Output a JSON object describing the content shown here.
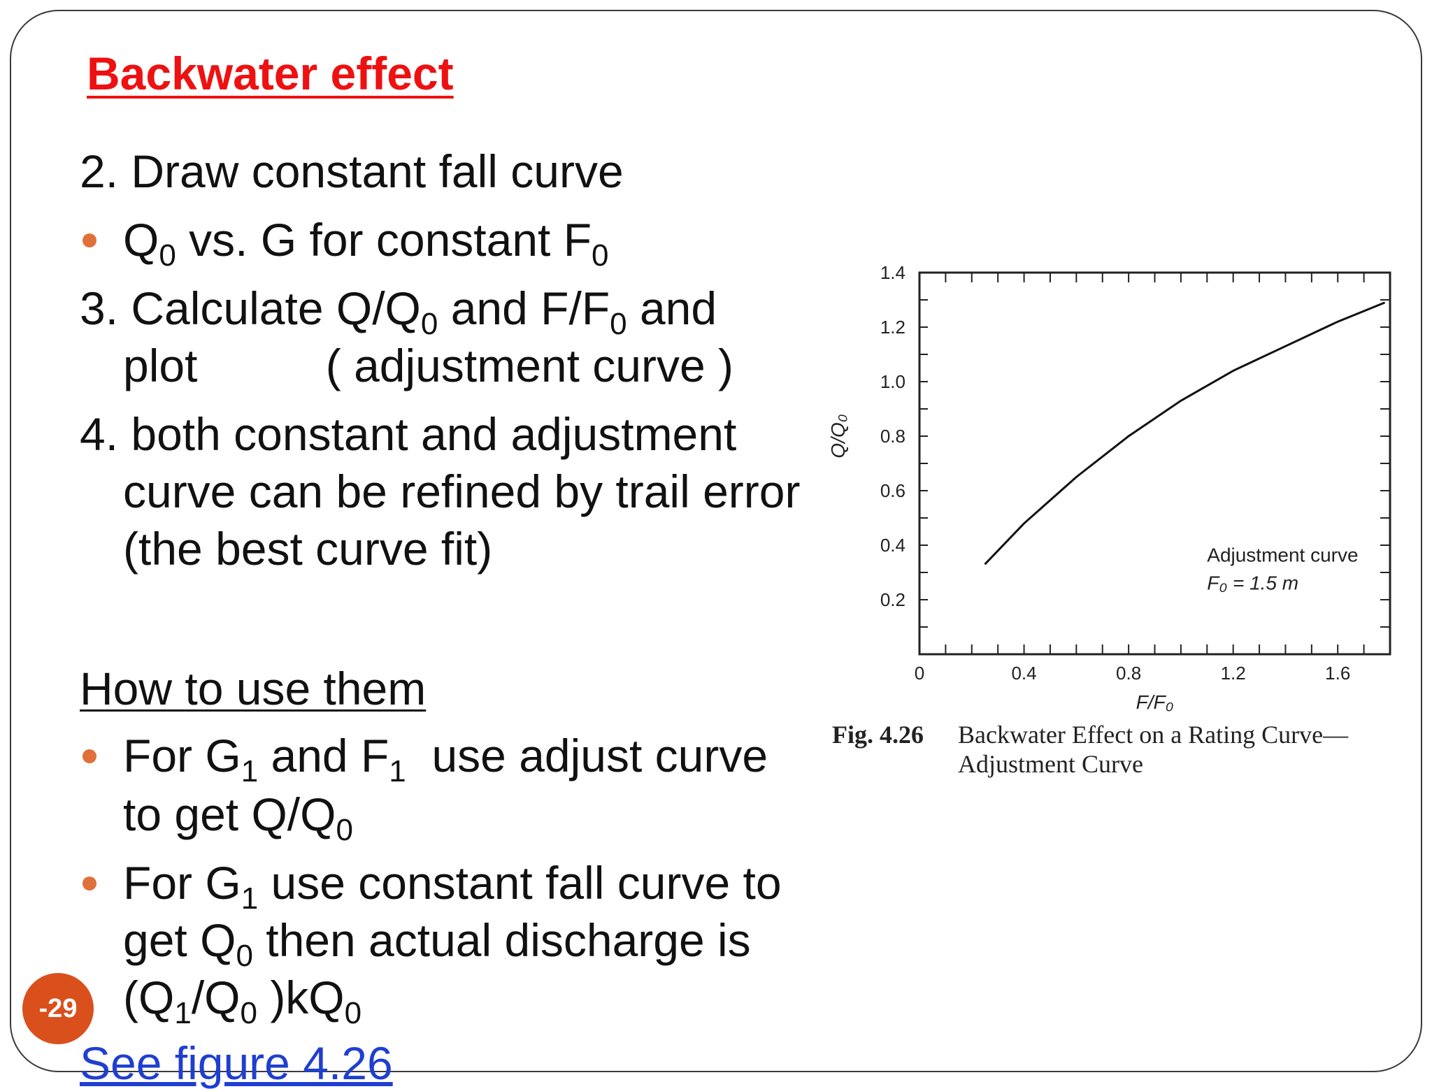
{
  "slide": {
    "title": "Backwater effect",
    "page_number": "-29",
    "step2": {
      "text": "2. Draw constant fall curve"
    },
    "bullet1": {
      "a": "Q",
      "a_sub": "0",
      "b": " vs. G for constant F",
      "b_sub": "0"
    },
    "step3": {
      "a": "3. Calculate Q/Q",
      "a_sub": "0",
      "b": " and F/F",
      "b_sub": "0",
      "c": " and",
      "line2": "plot          ( adjustment curve )"
    },
    "step4": {
      "line1": "4. both constant and adjustment",
      "line2": "curve can be refined by trail error",
      "line3": "(the best curve fit)"
    },
    "how_to": "How to use them",
    "bullet2": {
      "a": "For G",
      "a_sub": "1",
      "b": " and F",
      "b_sub": "1",
      "c": "  use adjust curve",
      "line2_a": "to get Q/Q",
      "line2_sub": "0"
    },
    "bullet3": {
      "a": "For G",
      "a_sub": "1",
      "b": " use constant fall curve to",
      "line2_a": "get Q",
      "line2_sub": "0",
      "line2_b": " then actual discharge is",
      "line3_a": "(Q",
      "line3_sub1": "1",
      "line3_b": "/Q",
      "line3_sub2": "0",
      "line3_c": " )kQ",
      "line3_sub3": "0"
    },
    "see_figure": "See figure 4.26"
  },
  "figure": {
    "caption_number": "Fig. 4.26",
    "caption_line1": "Backwater Effect on a Rating Curve—",
    "caption_line2": "Adjustment Curve"
  },
  "chart_data": {
    "type": "line",
    "xlabel": "F/F₀",
    "ylabel": "Q/Q₀",
    "x_ticks": [
      "0",
      "0.4",
      "0.8",
      "1.2",
      "1.6"
    ],
    "y_ticks": [
      "0.2",
      "0.4",
      "0.6",
      "0.8",
      "1.0",
      "1.2",
      "1.4"
    ],
    "xlim": [
      0,
      1.8
    ],
    "ylim": [
      0,
      1.4
    ],
    "annotation": [
      "Adjustment curve",
      "F₀ = 1.5 m"
    ],
    "series": [
      {
        "x": [
          0.25,
          0.4,
          0.6,
          0.8,
          1.0,
          1.2,
          1.4,
          1.6,
          1.78
        ],
        "y": [
          0.33,
          0.48,
          0.65,
          0.8,
          0.93,
          1.04,
          1.13,
          1.22,
          1.29
        ]
      }
    ]
  }
}
